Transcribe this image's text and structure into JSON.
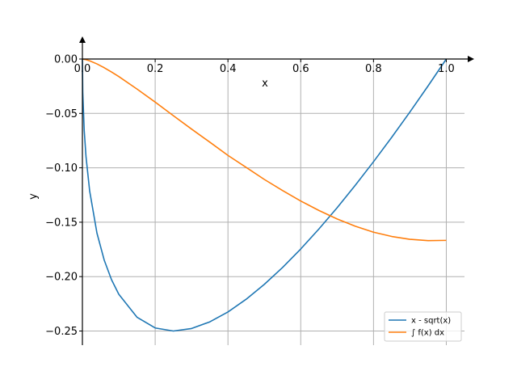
{
  "chart_data": {
    "type": "line",
    "xlabel": "x",
    "ylabel": "y",
    "xlim": [
      0.0,
      1.05
    ],
    "ylim": [
      -0.263,
      0.0
    ],
    "x_ticks": [
      0.0,
      0.2,
      0.4,
      0.6,
      0.8,
      1.0
    ],
    "x_tick_labels": [
      "0.0",
      "0.2",
      "0.4",
      "0.6",
      "0.8",
      "1.0"
    ],
    "y_ticks": [
      0.0,
      -0.05,
      -0.1,
      -0.15,
      -0.2,
      -0.25
    ],
    "y_tick_labels": [
      "0.00",
      "−0.05",
      "−0.10",
      "−0.15",
      "−0.20",
      "−0.25"
    ],
    "grid": true,
    "legend_position": "lower-right",
    "colors": {
      "series1": "#1f77b4",
      "series2": "#ff7f0e",
      "grid": "#b0b0b0",
      "axis": "#000000"
    },
    "series": [
      {
        "name": "x - sqrt(x)",
        "color": "#1f77b4",
        "x": [
          0.0,
          0.001,
          0.005,
          0.01,
          0.02,
          0.04,
          0.06,
          0.08,
          0.1,
          0.15,
          0.2,
          0.25,
          0.3,
          0.35,
          0.4,
          0.45,
          0.5,
          0.55,
          0.6,
          0.65,
          0.7,
          0.75,
          0.8,
          0.85,
          0.9,
          0.95,
          1.0
        ],
        "y": [
          0.0,
          -0.0306,
          -0.0657,
          -0.09,
          -0.1214,
          -0.16,
          -0.1849,
          -0.2028,
          -0.2162,
          -0.2373,
          -0.2472,
          -0.25,
          -0.2477,
          -0.2416,
          -0.2325,
          -0.2208,
          -0.2071,
          -0.1916,
          -0.1746,
          -0.1562,
          -0.1367,
          -0.116,
          -0.0944,
          -0.072,
          -0.0487,
          -0.0247,
          0.0
        ]
      },
      {
        "name": "∫ f(x) dx",
        "color": "#ff7f0e",
        "x": [
          0.0,
          0.01,
          0.02,
          0.04,
          0.06,
          0.08,
          0.1,
          0.15,
          0.2,
          0.25,
          0.3,
          0.35,
          0.4,
          0.45,
          0.5,
          0.55,
          0.6,
          0.65,
          0.7,
          0.75,
          0.8,
          0.85,
          0.9,
          0.95,
          1.0
        ],
        "y": [
          0.0,
          -0.0006,
          -0.0017,
          -0.0045,
          -0.008,
          -0.0119,
          -0.0161,
          -0.0276,
          -0.0396,
          -0.0521,
          -0.0644,
          -0.0764,
          -0.0886,
          -0.0996,
          -0.1107,
          -0.1209,
          -0.1305,
          -0.1392,
          -0.147,
          -0.1537,
          -0.1592,
          -0.1631,
          -0.1657,
          -0.1669,
          -0.1667
        ]
      }
    ]
  }
}
